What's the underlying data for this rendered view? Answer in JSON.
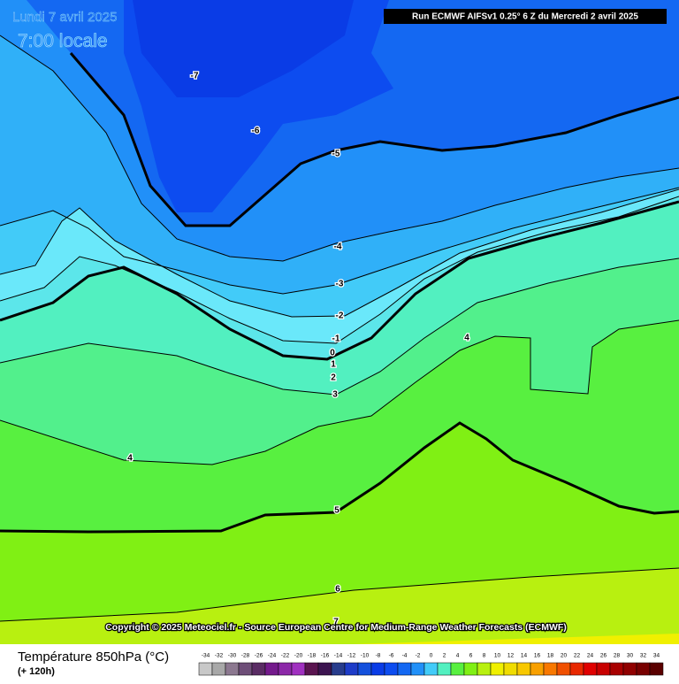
{
  "header": {
    "date": "Lundi 7 avril 2025",
    "time": "7:00 locale",
    "run": "Run ECMWF AIFSv1 0.25° 6 Z du Mercredi 2 avril 2025"
  },
  "map": {
    "contour_labels": [
      -7,
      -6,
      -5,
      -4,
      -3,
      -2,
      -1,
      0,
      1,
      2,
      3,
      4,
      4,
      5,
      6,
      7
    ],
    "copyright": "Copyright © 2025 Meteociel.fr - Source European Centre for Medium-Range Weather Forecasts (ECMWF)"
  },
  "legend": {
    "title": "Température 850hPa (°C)",
    "lead": "(+ 120h)",
    "scale": [
      -34,
      -32,
      -30,
      -28,
      -26,
      -24,
      -22,
      -20,
      -18,
      -16,
      -14,
      -12,
      -10,
      -8,
      -6,
      -4,
      -2,
      0,
      2,
      4,
      6,
      8,
      10,
      12,
      14,
      16,
      18,
      20,
      22,
      24,
      26,
      28,
      30,
      32,
      34
    ]
  }
}
